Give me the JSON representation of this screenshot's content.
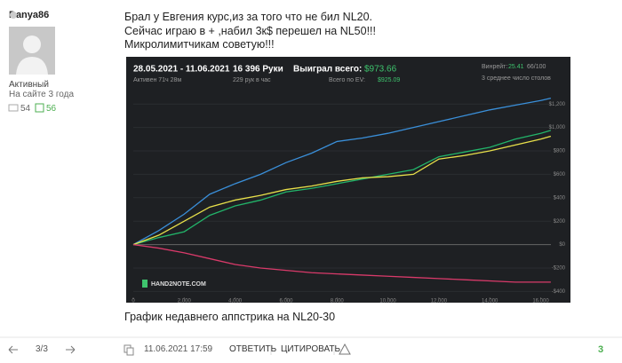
{
  "user": {
    "name": "Danya86",
    "status": "Активный",
    "tenure": "На сайте 3 года",
    "comments": "54",
    "likes": "56"
  },
  "post": {
    "lines": [
      "Брал у Евгения курс,из за того что не бил NL20.",
      "Сейчас играю в + ,набил 3к$ перешел на NL50!!!",
      "Микролимитчикам советую!!!"
    ],
    "caption": "График недавнего аппстрика на NL20-30",
    "chart": {
      "type": "line",
      "period": "28.05.2021 - 11.06.2021",
      "active": "Активен 71ч 28м",
      "hands": "16 396 Руки",
      "hands_per_hour": "229 рук в час",
      "won_label": "Выиграл всего:",
      "won": "$973.66",
      "ev_label": "Всего по EV:",
      "ev": "$925.09",
      "winrate_label": "Винрейт:",
      "winrate": "25.41",
      "winrate_unit": "66/100",
      "tables": "3 среднее число столов",
      "logo": "HAND2NOTE.COM",
      "x": [
        0,
        1000,
        2000,
        3000,
        4000,
        5000,
        6000,
        7000,
        8000,
        9000,
        10000,
        11000,
        12000,
        13000,
        14000,
        15000,
        16000,
        16396
      ],
      "series": [
        {
          "color": "#3a8fd9",
          "values": [
            0,
            120,
            260,
            430,
            520,
            600,
            700,
            780,
            880,
            910,
            950,
            1000,
            1050,
            1100,
            1150,
            1190,
            1230,
            1250
          ]
        },
        {
          "color": "#22b46a",
          "values": [
            0,
            60,
            110,
            250,
            330,
            380,
            450,
            480,
            520,
            560,
            600,
            640,
            750,
            790,
            830,
            900,
            950,
            975
          ]
        },
        {
          "color": "#e8e04a",
          "values": [
            0,
            80,
            200,
            320,
            380,
            420,
            470,
            500,
            540,
            570,
            580,
            600,
            730,
            760,
            800,
            850,
            900,
            925
          ]
        },
        {
          "color": "#d93a6a",
          "values": [
            0,
            -30,
            -70,
            -120,
            -170,
            -200,
            -220,
            -240,
            -250,
            -260,
            -270,
            -280,
            -290,
            -300,
            -310,
            -320,
            -320,
            -320
          ]
        }
      ],
      "xlim": [
        0,
        16400
      ],
      "ylim": [
        -450,
        1300
      ],
      "xticks": [
        0,
        {
          "value": 2000,
          "label": "2,000"
        },
        {
          "value": 4000,
          "label": "4,000"
        },
        {
          "value": 6000,
          "label": "6,000"
        },
        {
          "value": 8000,
          "label": "8,000"
        },
        {
          "value": 10000,
          "label": "10,000"
        },
        {
          "value": 12000,
          "label": "12,000"
        },
        {
          "value": 14000,
          "label": "14,000"
        },
        {
          "value": 16000,
          "label": "16,000"
        }
      ],
      "yticks": [
        {
          "value": -400,
          "label": "-$400"
        },
        {
          "value": -200,
          "label": "-$200"
        },
        {
          "value": 0,
          "label": "$0"
        },
        {
          "value": 200,
          "label": "$200"
        },
        {
          "value": 400,
          "label": "$400"
        },
        {
          "value": 600,
          "label": "$600"
        },
        {
          "value": 800,
          "label": "$800"
        },
        {
          "value": 1000,
          "label": "$1,000"
        },
        {
          "value": 1200,
          "label": "$1,200"
        }
      ]
    }
  },
  "footer": {
    "page": "3/3",
    "date": "11.06.2021 17:59",
    "reply": "ОТВЕТИТЬ",
    "quote": "ЦИТИРОВАТЬ",
    "rating": "3"
  }
}
